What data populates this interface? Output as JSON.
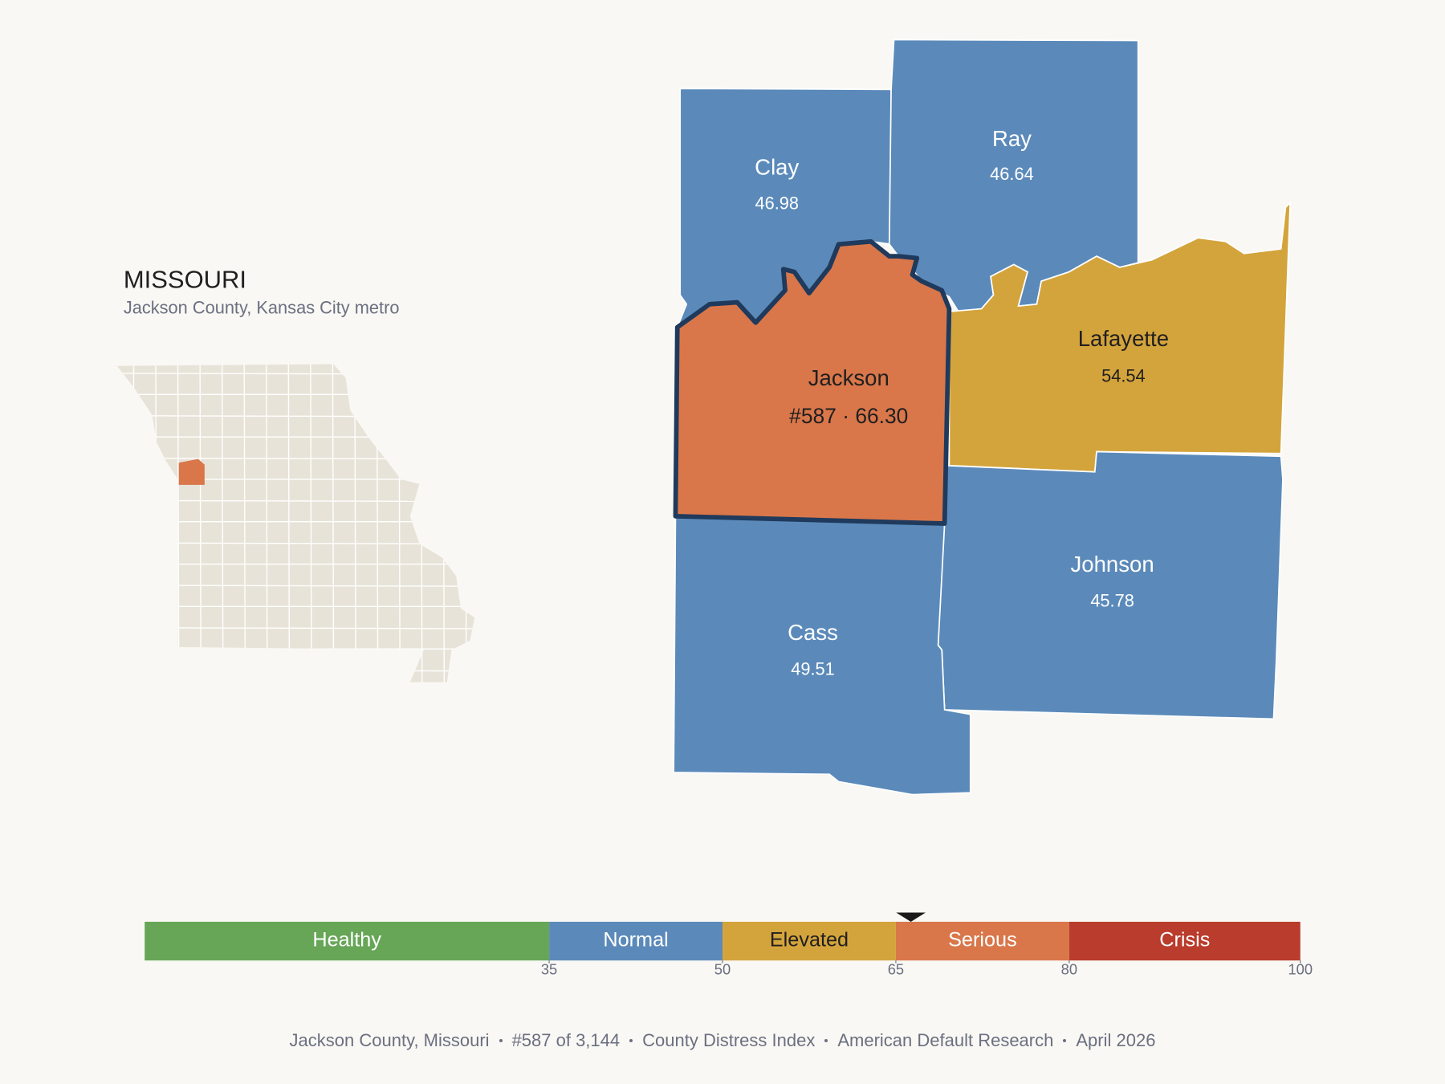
{
  "header": {
    "title": "MISSOURI",
    "subtitle": "Jackson County, Kansas City metro"
  },
  "counties": [
    {
      "name": "Jackson",
      "score": 66.3,
      "label": "#587 · 66.30",
      "color": "#d9774a",
      "selected": true
    },
    {
      "name": "Clay",
      "score": 46.98,
      "color": "#5b8aba"
    },
    {
      "name": "Ray",
      "score": 46.64,
      "color": "#5b8aba"
    },
    {
      "name": "Lafayette",
      "score": 54.54,
      "color": "#d4a43c"
    },
    {
      "name": "Johnson",
      "score": 45.78,
      "color": "#5b8aba"
    },
    {
      "name": "Cass",
      "score": 49.51,
      "color": "#5b8aba"
    }
  ],
  "scale": {
    "lim": [
      0,
      100
    ],
    "ticks": [
      35,
      50,
      65,
      80,
      100
    ],
    "bands": [
      {
        "name": "Healthy",
        "color": "#67a657"
      },
      {
        "name": "Normal",
        "color": "#5b8aba"
      },
      {
        "name": "Elevated",
        "color": "#d4a43c"
      },
      {
        "name": "Serious",
        "color": "#d9774a"
      },
      {
        "name": "Crisis",
        "color": "#b93c2c"
      }
    ]
  },
  "footer": [
    "Jackson County, Missouri",
    "#587 of 3,144",
    "County Distress Index",
    "American Default Research",
    "April 2026"
  ]
}
